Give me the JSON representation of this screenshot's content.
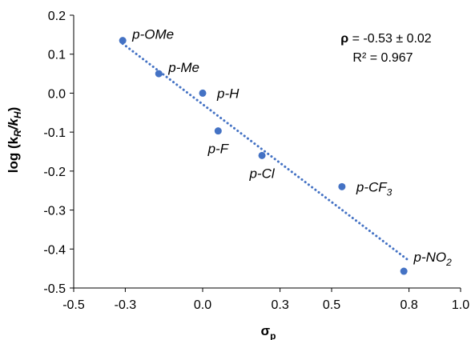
{
  "chart_data": {
    "type": "scatter",
    "xlabel": {
      "main": "σ",
      "sub": "p"
    },
    "ylabel": {
      "pre": "log (k",
      "sub1": "R",
      "mid": "/k",
      "sub2": "H",
      "post": ")"
    },
    "xlim": [
      -0.5,
      1.0
    ],
    "ylim": [
      -0.5,
      0.2
    ],
    "x_ticks": [
      -0.5,
      -0.3,
      0.0,
      0.3,
      0.5,
      0.8,
      1.0
    ],
    "x_tick_labels": [
      "-0.5",
      "-0.3",
      "0.0",
      "0.3",
      "0.5",
      "0.8",
      "1.0"
    ],
    "y_ticks": [
      0.2,
      0.1,
      0.0,
      -0.1,
      -0.2,
      -0.3,
      -0.4,
      -0.5
    ],
    "y_tick_labels": [
      "0.2",
      "0.1",
      "0.0",
      "-0.1",
      "-0.2",
      "-0.3",
      "-0.4",
      "-0.5"
    ],
    "grid": false,
    "marker_color": "#4472C4",
    "trendline": {
      "style": "dotted",
      "color": "#4472C4",
      "x": [
        -0.31,
        0.8
      ],
      "y": [
        0.127,
        -0.43
      ]
    },
    "points": [
      {
        "label": "p-OMe",
        "label_parts": [
          "p-OMe"
        ],
        "x": -0.31,
        "y": 0.135,
        "anchor": "ne"
      },
      {
        "label": "p-Me",
        "label_parts": [
          "p-Me"
        ],
        "x": -0.17,
        "y": 0.05,
        "anchor": "ne"
      },
      {
        "label": "p-H",
        "label_parts": [
          "p-H"
        ],
        "x": 0.0,
        "y": 0.0,
        "anchor": "e"
      },
      {
        "label": "p-F",
        "label_parts": [
          "p-F"
        ],
        "x": 0.06,
        "y": -0.097,
        "anchor": "s"
      },
      {
        "label": "p-Cl",
        "label_parts": [
          "p-Cl"
        ],
        "x": 0.23,
        "y": -0.16,
        "anchor": "sw"
      },
      {
        "label": "p-CF3",
        "label_parts": [
          "p-CF",
          "3"
        ],
        "x": 0.54,
        "y": -0.24,
        "anchor": "e"
      },
      {
        "label": "p-NO2",
        "label_parts": [
          "p-NO",
          "2"
        ],
        "x": 0.78,
        "y": -0.457,
        "anchor": "n"
      }
    ],
    "annotation": {
      "rho_symbol": "ρ",
      "rho_text": " = -0.53 ± 0.02",
      "r2_text": "R² = 0.967"
    }
  }
}
